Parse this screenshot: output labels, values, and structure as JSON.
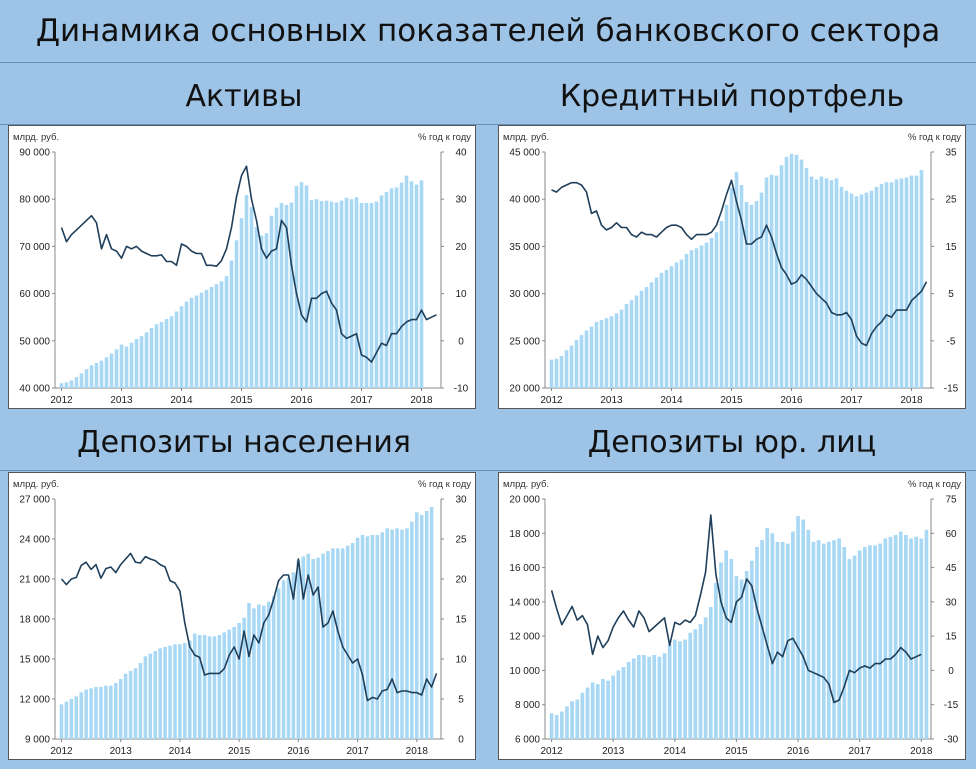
{
  "main_title": "Динамика основных показателей банковского сектора",
  "unit_left": "млрд. руб.",
  "unit_right": "% год к году",
  "colors": {
    "bars": "#a9d8f5",
    "line": "#1f3f5b",
    "background": "#9dc3e6"
  },
  "chart_data": [
    {
      "type": "bar",
      "title": "Активы",
      "x_ticks": [
        "2012",
        "2013",
        "2014",
        "2015",
        "2016",
        "2017",
        "2018"
      ],
      "y_left_ticks": [
        "40 000",
        "50 000",
        "60 000",
        "70 000",
        "80 000",
        "90 000"
      ],
      "y_right_ticks": [
        "-10",
        "0",
        "10",
        "20",
        "30",
        "40"
      ],
      "y_left_range": [
        40000,
        90000
      ],
      "y_right_range": [
        -10,
        40
      ],
      "series": [
        {
          "axis": "left",
          "type": "bar",
          "values": [
            41000,
            41200,
            41600,
            42300,
            43100,
            44000,
            44800,
            45300,
            45800,
            46500,
            47300,
            48200,
            49200,
            48800,
            49600,
            50400,
            51000,
            51800,
            52700,
            53500,
            54000,
            54600,
            55200,
            56200,
            57300,
            58300,
            59100,
            59600,
            60200,
            60800,
            61400,
            62000,
            62600,
            63700,
            67000,
            71300,
            76000,
            80900,
            78300,
            74100,
            72300,
            72800,
            76500,
            78200,
            79200,
            78800,
            79300,
            82800,
            83600,
            82900,
            79800,
            80000,
            79600,
            79700,
            79500,
            79300,
            79700,
            80300,
            80000,
            80400,
            79200,
            79200,
            79200,
            79500,
            80800,
            81500,
            82300,
            82500,
            83500,
            85000,
            83800,
            83100,
            84000
          ]
        },
        {
          "axis": "right",
          "type": "line",
          "values": [
            24,
            21,
            22.5,
            23.5,
            24.5,
            25.5,
            26.5,
            25,
            19.5,
            22.5,
            19.5,
            19,
            17.5,
            20,
            19.5,
            20,
            19,
            18.5,
            18,
            18,
            18.2,
            16.8,
            16.8,
            16,
            20.5,
            20,
            19,
            18.5,
            18.5,
            16,
            16,
            15.8,
            17,
            19.5,
            24,
            30.5,
            35,
            37,
            30,
            25.5,
            19.5,
            17.5,
            19,
            19.5,
            25.5,
            24,
            16,
            10,
            5.5,
            4,
            9,
            9,
            10,
            10.5,
            8,
            6.5,
            1.5,
            0.5,
            1,
            1.5,
            -3,
            -3.5,
            -4.5,
            -2.5,
            -0.5,
            -1,
            1.5,
            1.5,
            3,
            4,
            4.5,
            4.5,
            6.5,
            4.5,
            5,
            5.5
          ]
        }
      ]
    },
    {
      "type": "bar",
      "title": "Кредитный портфель",
      "x_ticks": [
        "2012",
        "2013",
        "2014",
        "2015",
        "2016",
        "2017",
        "2018"
      ],
      "y_left_ticks": [
        "20 000",
        "25 000",
        "30 000",
        "35 000",
        "40 000",
        "45 000"
      ],
      "y_right_ticks": [
        "-15",
        "-5",
        "5",
        "15",
        "25",
        "35"
      ],
      "y_left_range": [
        20000,
        45000
      ],
      "y_right_range": [
        -15,
        35
      ],
      "series": [
        {
          "axis": "left",
          "type": "bar",
          "values": [
            23000,
            23100,
            23400,
            24000,
            24500,
            25100,
            25600,
            26100,
            26500,
            27000,
            27200,
            27400,
            27600,
            27900,
            28300,
            28900,
            29300,
            29800,
            30300,
            30700,
            31200,
            31700,
            32200,
            32500,
            32900,
            33300,
            33600,
            34200,
            34600,
            34800,
            35100,
            35400,
            35900,
            36500,
            37700,
            39400,
            41200,
            42900,
            41500,
            39700,
            39400,
            39800,
            40700,
            42300,
            42600,
            42500,
            43600,
            44500,
            44800,
            44700,
            44200,
            43300,
            42400,
            42100,
            42400,
            42200,
            42000,
            42200,
            41300,
            40900,
            40600,
            40300,
            40500,
            40700,
            40900,
            41300,
            41600,
            41800,
            41800,
            42100,
            42200,
            42300,
            42500,
            42500,
            43100
          ]
        },
        {
          "axis": "right",
          "type": "line",
          "values": [
            27,
            26.5,
            27.5,
            28,
            28.5,
            28.5,
            28,
            26.5,
            22,
            22.5,
            19.5,
            18.5,
            19,
            20,
            19,
            19,
            17.5,
            17,
            18,
            17.5,
            17.5,
            17,
            18,
            19,
            19.5,
            19.5,
            19,
            17.5,
            16.5,
            17.5,
            17.5,
            17.5,
            18,
            19.5,
            22.5,
            26,
            29,
            24.5,
            20.5,
            15.5,
            15.5,
            16.5,
            17,
            19.5,
            17,
            13.5,
            10.5,
            9,
            7,
            7.5,
            9,
            8,
            6.5,
            5,
            4,
            3,
            1,
            0.5,
            0.5,
            1,
            -0.5,
            -4,
            -5.5,
            -6,
            -3.5,
            -2,
            -1,
            0.5,
            0,
            1.5,
            1.5,
            1.5,
            3.5,
            4.5,
            5.5,
            7.5
          ]
        }
      ]
    },
    {
      "type": "bar",
      "title": "Депозиты населения",
      "x_ticks": [
        "2012",
        "2013",
        "2014",
        "2015",
        "2016",
        "2017",
        "2018"
      ],
      "y_left_ticks": [
        "9 000",
        "12 000",
        "15 000",
        "18 000",
        "21 000",
        "24 000",
        "27 000"
      ],
      "y_right_ticks": [
        "0",
        "5",
        "10",
        "15",
        "20",
        "25",
        "30"
      ],
      "y_left_range": [
        9000,
        27000
      ],
      "y_right_range": [
        0,
        30
      ],
      "series": [
        {
          "axis": "left",
          "type": "bar",
          "values": [
            11600,
            11800,
            12000,
            12200,
            12500,
            12700,
            12800,
            12900,
            12900,
            13000,
            13000,
            13200,
            13500,
            13900,
            14100,
            14300,
            14700,
            15200,
            15400,
            15600,
            15800,
            15900,
            16000,
            16100,
            16100,
            16200,
            16400,
            16900,
            16800,
            16800,
            16700,
            16700,
            16800,
            17000,
            17200,
            17400,
            17700,
            18100,
            19200,
            18800,
            19100,
            19000,
            19300,
            19700,
            20300,
            20900,
            21100,
            21500,
            22400,
            22700,
            22900,
            22500,
            22600,
            22900,
            23100,
            23300,
            23300,
            23300,
            23500,
            23700,
            24100,
            24300,
            24200,
            24300,
            24300,
            24500,
            24800,
            24700,
            24800,
            24700,
            24800,
            25300,
            26000,
            25800,
            26100,
            26400
          ]
        },
        {
          "axis": "right",
          "type": "line",
          "values": [
            20,
            19.3,
            20,
            20.2,
            21.7,
            22.1,
            21.2,
            21.8,
            20.1,
            21.3,
            21.5,
            20.8,
            21.8,
            22.5,
            23.2,
            22.1,
            22,
            22.8,
            22.5,
            22.3,
            21.8,
            21.5,
            19.8,
            19.5,
            18.5,
            14.5,
            11.5,
            10.5,
            10.2,
            8,
            8.2,
            8.2,
            8.2,
            8.8,
            10.5,
            11.5,
            10,
            13.5,
            10.3,
            13,
            12,
            14.5,
            15.5,
            17.5,
            19.8,
            20.5,
            20.5,
            17.5,
            22.5,
            17.5,
            20.5,
            18,
            19,
            14,
            14.5,
            16,
            13.5,
            11.5,
            10.5,
            9.5,
            10,
            8,
            4.8,
            5.2,
            5,
            6,
            6.2,
            7.5,
            5.8,
            6,
            6,
            5.8,
            5.8,
            5.5,
            7.5,
            6.5,
            8.2
          ]
        }
      ]
    },
    {
      "type": "bar",
      "title": "Депозиты юр. лиц",
      "x_ticks": [
        "2012",
        "2013",
        "2014",
        "2015",
        "2016",
        "2017",
        "2018"
      ],
      "y_left_ticks": [
        "6 000",
        "8 000",
        "10 000",
        "12 000",
        "14 000",
        "16 000",
        "18 000",
        "20 000"
      ],
      "y_right_ticks": [
        "-30",
        "-15",
        "0",
        "15",
        "30",
        "45",
        "60",
        "75"
      ],
      "y_left_range": [
        6000,
        20000
      ],
      "y_right_range": [
        -30,
        75
      ],
      "series": [
        {
          "axis": "left",
          "type": "bar",
          "values": [
            7500,
            7400,
            7600,
            7900,
            8200,
            8300,
            8700,
            9000,
            9300,
            9200,
            9500,
            9400,
            9700,
            10000,
            10200,
            10500,
            10700,
            10900,
            10900,
            10800,
            10900,
            10800,
            11000,
            11500,
            11800,
            11700,
            11800,
            12200,
            12400,
            12700,
            13100,
            13700,
            15100,
            16300,
            17000,
            16500,
            15500,
            15300,
            15800,
            16400,
            17200,
            17600,
            18300,
            18000,
            17500,
            17500,
            17400,
            18100,
            19000,
            18800,
            18200,
            17500,
            17600,
            17400,
            17500,
            17600,
            17700,
            17200,
            16500,
            16700,
            17000,
            17200,
            17300,
            17300,
            17400,
            17700,
            17800,
            17900,
            18100,
            17900,
            17700,
            17800,
            17700,
            18200
          ]
        },
        {
          "axis": "right",
          "type": "line",
          "values": [
            35,
            27,
            20,
            24,
            28,
            22,
            24,
            20,
            7,
            15,
            10,
            13,
            19,
            23,
            26,
            22,
            19,
            26,
            23,
            17,
            19,
            21,
            23,
            11,
            21,
            20,
            22,
            21,
            24,
            33,
            43,
            68,
            42,
            30,
            23,
            21,
            30,
            32,
            40,
            37,
            27,
            19,
            11,
            3,
            8,
            6,
            13,
            14,
            10,
            6,
            0,
            -1,
            -2,
            -3,
            -6,
            -14,
            -13,
            -7,
            0,
            -1,
            1,
            2,
            1,
            3,
            3,
            5,
            5,
            7,
            10,
            8,
            5,
            6,
            7
          ]
        }
      ]
    }
  ]
}
